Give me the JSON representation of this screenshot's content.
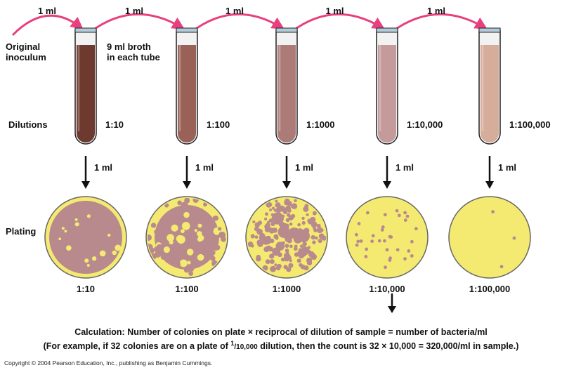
{
  "transfer_label": "1 ml",
  "original_inoculum": [
    "Original",
    "inoculum"
  ],
  "broth_note": [
    "9 ml broth",
    "in each tube"
  ],
  "dilutions_label": "Dilutions",
  "plating_label": "Plating",
  "plate_volume_label": "1 ml",
  "stages": [
    {
      "dilution": "1:10",
      "tube_color": "#6e3a30",
      "colonies": "confluent"
    },
    {
      "dilution": "1:100",
      "tube_color": "#9a6256",
      "colonies": "dense"
    },
    {
      "dilution": "1:1000",
      "tube_color": "#ad7b77",
      "colonies": "many"
    },
    {
      "dilution": "1:10,000",
      "tube_color": "#c49a9b",
      "colonies": "few",
      "colony_count": 32
    },
    {
      "dilution": "1:100,000",
      "tube_color": "#d5ad9a",
      "colonies": "rare",
      "colony_count": 3
    }
  ],
  "calc_line1": "Calculation: Number of colonies on plate × reciprocal of dilution of sample = number of bacteria/ml",
  "calc_line2_pre": "(For example, if 32 colonies are on a plate of ",
  "calc_fraction_num": "1",
  "calc_fraction_den": "/10,000",
  "calc_line2_post": " dilution, then the count is 32 × 10,000 = 320,000/ml in sample.)",
  "copyright": "Copyright © 2004 Pearson Education, Inc., publishing as Benjamin Cummings.",
  "colors": {
    "arrow_pink": "#e8407e",
    "agar": "#f4ea72",
    "colony": "#b88a8d",
    "tube_rim": "#b4cad8"
  }
}
